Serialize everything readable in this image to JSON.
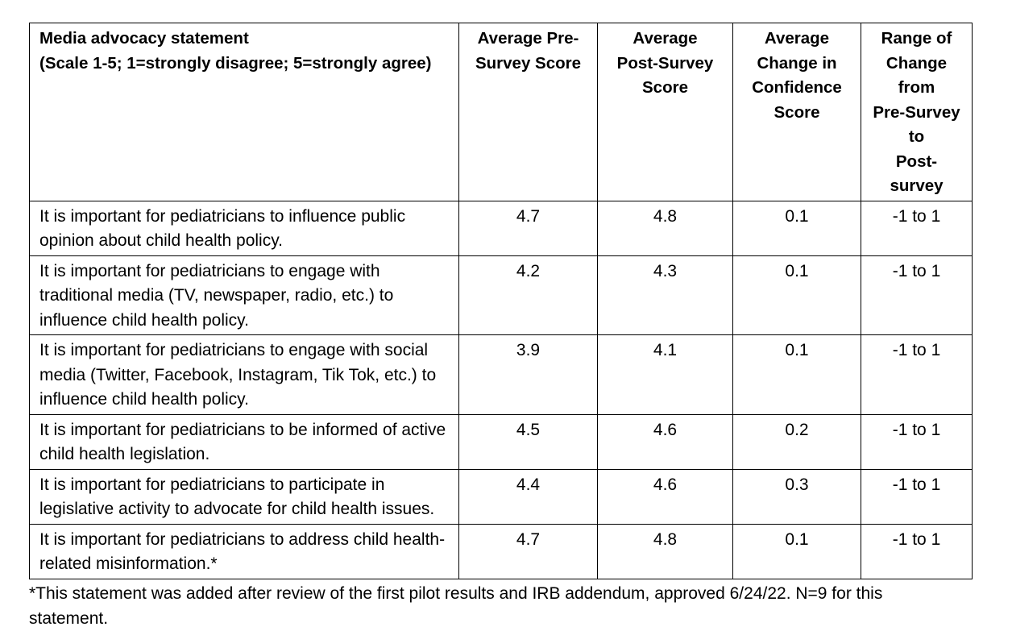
{
  "table": {
    "headers": [
      {
        "lines": [
          "Media advocacy statement",
          "(Scale 1-5; 1=strongly disagree; 5=strongly agree)"
        ]
      },
      {
        "lines": [
          "Average Pre-",
          "Survey Score"
        ]
      },
      {
        "lines": [
          "Average",
          "Post-Survey",
          "Score"
        ]
      },
      {
        "lines": [
          "Average",
          "Change in",
          "Confidence",
          "Score"
        ]
      },
      {
        "lines": [
          "Range of",
          "Change from",
          "Pre-Survey to",
          "Post-survey"
        ]
      }
    ],
    "rows": [
      {
        "statement": "It is important for pediatricians to influence public opinion about child health policy.",
        "pre": "4.7",
        "post": "4.8",
        "change": "0.1",
        "range": "-1 to 1"
      },
      {
        "statement": "It is important for pediatricians to engage with traditional media (TV, newspaper, radio, etc.) to influence child health policy.",
        "pre": "4.2",
        "post": "4.3",
        "change": "0.1",
        "range": "-1 to 1"
      },
      {
        "statement": "It is important for pediatricians to engage with social media (Twitter, Facebook, Instagram, Tik Tok, etc.) to influence child health policy.",
        "pre": "3.9",
        "post": "4.1",
        "change": "0.1",
        "range": "-1 to 1"
      },
      {
        "statement": "It is important for pediatricians to be informed of active child health legislation.",
        "pre": "4.5",
        "post": "4.6",
        "change": "0.2",
        "range": "-1 to 1"
      },
      {
        "statement": "It is important for pediatricians to participate in legislative activity to advocate for child health issues.",
        "pre": "4.4",
        "post": "4.6",
        "change": "0.3",
        "range": "-1 to 1"
      },
      {
        "statement": "It is important for pediatricians to address child health-related misinformation.*",
        "pre": "4.7",
        "post": "4.8",
        "change": "0.1",
        "range": "-1 to 1"
      }
    ]
  },
  "footnote": "*This statement was added after review of the first pilot results and IRB addendum, approved 6/24/22. N=9 for this statement."
}
